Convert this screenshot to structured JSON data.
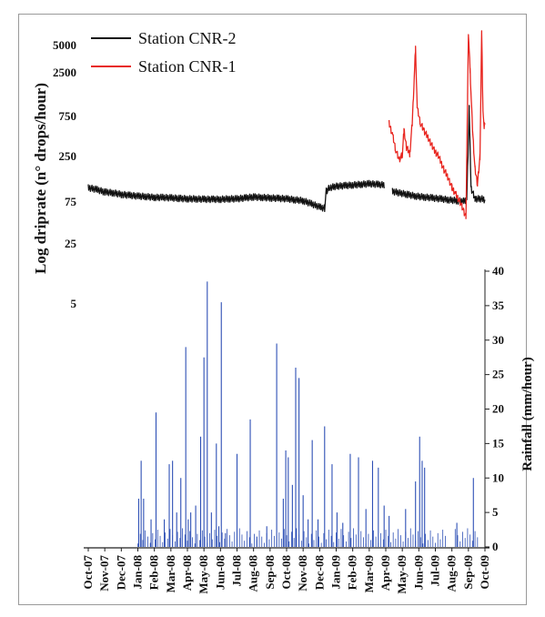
{
  "chart_data": {
    "type": "line",
    "ylabel_left": "Log driprate (n° drops/hour)",
    "ylabel_right": "Rainfall (mm/hour)",
    "left_ticks": [
      "5000",
      "2500",
      "750",
      "250",
      "75",
      "25",
      "5"
    ],
    "right_ticks": [
      "0",
      "5",
      "10",
      "15",
      "20",
      "25",
      "30",
      "35",
      "40"
    ],
    "right_ylim": [
      0,
      40
    ],
    "x_ticks": [
      "Oct-07",
      "Nov-07",
      "Dec-07",
      "Jan-08",
      "Feb-08",
      "Mar-08",
      "Apr-08",
      "May-08",
      "Jun-08",
      "Jul-08",
      "Aug-08",
      "Sep-08",
      "Oct-08",
      "Nov-08",
      "Dec-08",
      "Jan-09",
      "Feb-09",
      "Mar-09",
      "Apr-09",
      "May-09",
      "Jun-09",
      "Jul-09",
      "Aug-09",
      "Sep-09",
      "Oct-09"
    ],
    "legend": [
      "Station CNR-2",
      "Station CNR-1"
    ],
    "colors": {
      "cnr2": "#111111",
      "cnr1": "#e8251f",
      "rain": "#2d4fb5"
    },
    "series": [
      {
        "name": "Station CNR-2",
        "points": [
          [
            0.0,
            110
          ],
          [
            0.5,
            105
          ],
          [
            1.0,
            98
          ],
          [
            1.5,
            96
          ],
          [
            2.0,
            92
          ],
          [
            2.5,
            90
          ],
          [
            3.0,
            88
          ],
          [
            3.5,
            87
          ],
          [
            4.0,
            85
          ],
          [
            4.5,
            85
          ],
          [
            5.0,
            84
          ],
          [
            5.5,
            83
          ],
          [
            6.0,
            82
          ],
          [
            6.5,
            82
          ],
          [
            7.0,
            81
          ],
          [
            7.5,
            81
          ],
          [
            8.0,
            81
          ],
          [
            8.5,
            82
          ],
          [
            9.0,
            82
          ],
          [
            9.5,
            84
          ],
          [
            10.0,
            86
          ],
          [
            10.5,
            85
          ],
          [
            11.0,
            84
          ],
          [
            11.5,
            83
          ],
          [
            12.0,
            82
          ],
          [
            12.5,
            80
          ],
          [
            13.0,
            78
          ],
          [
            13.5,
            72
          ],
          [
            14.0,
            66
          ],
          [
            14.3,
            64
          ],
          [
            14.4,
            100
          ],
          [
            14.6,
            110
          ],
          [
            15.0,
            114
          ],
          [
            15.5,
            116
          ],
          [
            16.0,
            118
          ],
          [
            16.5,
            120
          ],
          [
            17.0,
            122
          ],
          [
            17.5,
            120
          ],
          [
            17.9,
            118
          ],
          null,
          [
            18.4,
            100
          ],
          [
            18.8,
            96
          ],
          [
            19.3,
            92
          ],
          [
            19.8,
            88
          ],
          [
            20.3,
            86
          ],
          [
            20.8,
            84
          ],
          [
            21.3,
            82
          ],
          [
            21.8,
            80
          ],
          [
            22.3,
            78
          ],
          [
            22.7,
            77
          ],
          [
            22.9,
            80
          ],
          [
            23.05,
            900
          ],
          [
            23.15,
            110
          ],
          [
            23.4,
            82
          ],
          [
            23.8,
            82
          ],
          [
            24.0,
            80
          ]
        ]
      },
      {
        "name": "Station CNR-1",
        "points": [
          [
            18.2,
            600
          ],
          [
            18.4,
            450
          ],
          [
            18.6,
            300
          ],
          [
            18.8,
            230
          ],
          [
            19.0,
            260
          ],
          [
            19.1,
            500
          ],
          [
            19.25,
            320
          ],
          [
            19.45,
            270
          ],
          [
            19.6,
            600
          ],
          [
            19.8,
            4200
          ],
          [
            19.9,
            900
          ],
          [
            20.1,
            600
          ],
          [
            20.3,
            500
          ],
          [
            20.6,
            400
          ],
          [
            20.9,
            300
          ],
          [
            21.2,
            250
          ],
          [
            21.5,
            180
          ],
          [
            21.8,
            140
          ],
          [
            22.0,
            110
          ],
          [
            22.2,
            95
          ],
          [
            22.5,
            75
          ],
          [
            22.7,
            60
          ],
          [
            22.85,
            52
          ],
          [
            22.95,
            1200
          ],
          [
            23.0,
            6500
          ],
          [
            23.1,
            2400
          ],
          [
            23.25,
            500
          ],
          [
            23.4,
            180
          ],
          [
            23.55,
            120
          ],
          [
            23.7,
            250
          ],
          [
            23.8,
            6300
          ],
          [
            23.88,
            900
          ],
          [
            23.95,
            500
          ],
          [
            24.0,
            620
          ]
        ]
      }
    ],
    "rainfall": {
      "x": [
        3.05,
        3.2,
        3.35,
        3.8,
        4.1,
        4.6,
        4.9,
        5.1,
        5.35,
        5.6,
        5.9,
        6.05,
        6.2,
        6.5,
        6.8,
        7.0,
        7.2,
        7.45,
        7.75,
        7.9,
        8.05,
        8.3,
        9.0,
        9.8,
        10.2,
        10.8,
        11.4,
        11.8,
        11.95,
        12.1,
        12.35,
        12.55,
        12.75,
        13.0,
        13.3,
        13.55,
        13.9,
        14.3,
        14.75,
        15.05,
        15.4,
        15.85,
        16.35,
        16.8,
        17.2,
        17.55,
        17.9,
        18.2,
        19.2,
        19.8,
        20.05,
        20.2,
        20.35,
        22.3,
        23.3
      ],
      "y": [
        7,
        12.5,
        7,
        4,
        19.5,
        4,
        12,
        12.5,
        5,
        10,
        29,
        4,
        5,
        6,
        16,
        27.5,
        38.5,
        5,
        15,
        3,
        35.5,
        2,
        13.5,
        18.5,
        1.5,
        3,
        29.5,
        7,
        14,
        13,
        9,
        26,
        24.5,
        7.5,
        4,
        15.5,
        4,
        17.5,
        12,
        5,
        3.5,
        13.5,
        13,
        5.5,
        12.5,
        11.5,
        6,
        4.5,
        5.5,
        9.5,
        16,
        12.5,
        11.5,
        3.5,
        10
      ]
    }
  }
}
